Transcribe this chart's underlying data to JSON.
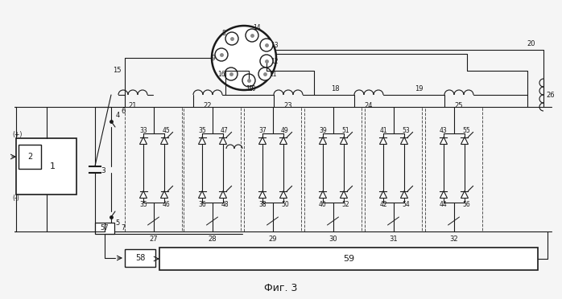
{
  "title": "Фиг. 3",
  "bg_color": "#f5f5f5",
  "line_color": "#1a1a1a",
  "fig_width": 6.98,
  "fig_height": 3.72,
  "dpi": 100,
  "stage_labels": [
    "27",
    "28",
    "29",
    "30",
    "31",
    "32"
  ],
  "comp_top_d": [
    "33",
    "35",
    "37",
    "39",
    "41",
    "43"
  ],
  "comp_top_t": [
    "45",
    "47",
    "49",
    "51",
    "53",
    "55"
  ],
  "comp_bot_d": [
    "35",
    "36",
    "38",
    "40",
    "42",
    "44"
  ],
  "comp_bot_t": [
    "46",
    "48",
    "50",
    "52",
    "54",
    "56"
  ]
}
